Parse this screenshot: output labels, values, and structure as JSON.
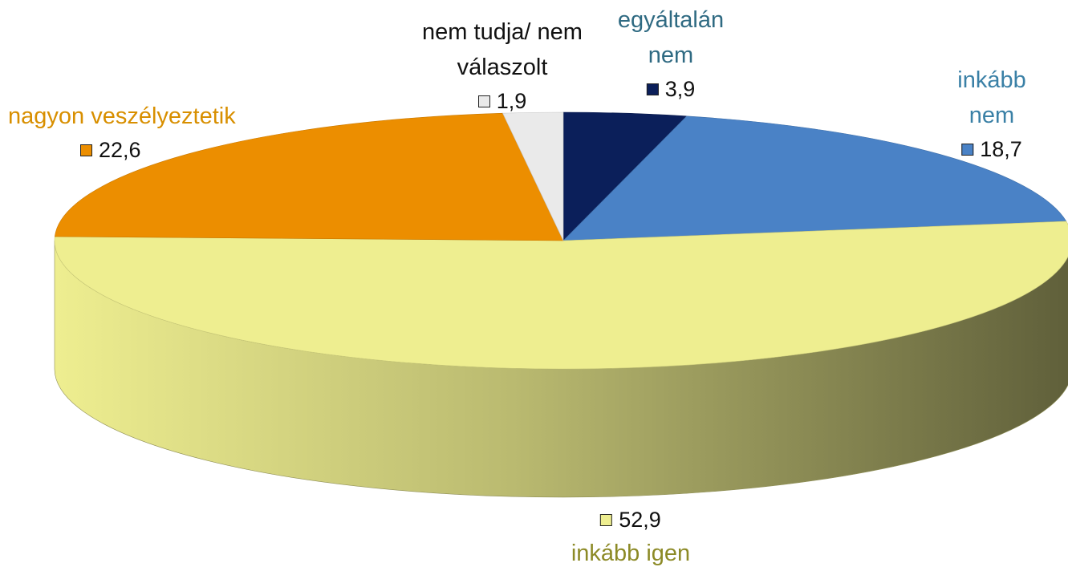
{
  "chart_data": {
    "type": "pie",
    "three_d": true,
    "categories": [
      "egyáltalán nem",
      "inkább nem",
      "inkább igen",
      "nagyon veszélyeztetik",
      "nem tudja/ nem válaszolt"
    ],
    "values": [
      3.9,
      18.7,
      52.9,
      22.6,
      1.9
    ],
    "value_labels": [
      "3,9",
      "18,7",
      "52,9",
      "22,6",
      "1,9"
    ],
    "colors": [
      "#0b1f5a",
      "#4a82c6",
      "#eeee90",
      "#ec8e00",
      "#eaeaea"
    ]
  }
}
